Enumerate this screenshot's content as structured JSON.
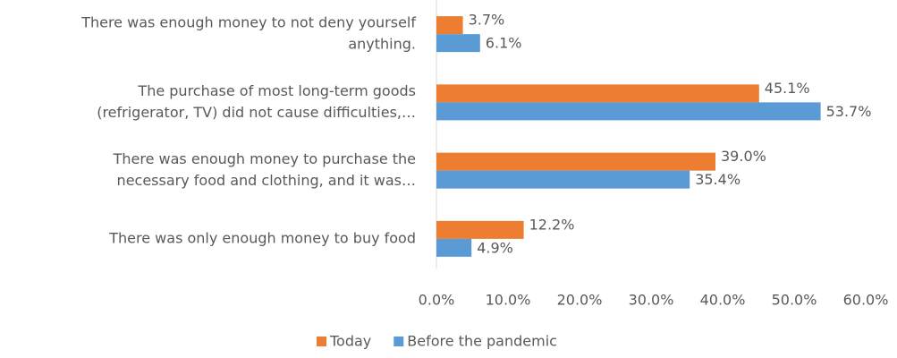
{
  "chart_data": {
    "type": "bar",
    "orientation": "horizontal",
    "categories": [
      [
        "There was enough money to not deny yourself",
        "anything."
      ],
      [
        "The purchase of most long-term goods",
        "(refrigerator, TV) did not cause difficulties,…"
      ],
      [
        "There was enough money to purchase the",
        "necessary food and clothing, and it was…"
      ],
      [
        "There was only enough money to buy food"
      ]
    ],
    "series": [
      {
        "name": "Today",
        "color": "#ed7d31",
        "values": [
          3.7,
          45.1,
          39.0,
          12.2
        ],
        "value_labels": [
          "3.7%",
          "45.1%",
          "39.0%",
          "12.2%"
        ]
      },
      {
        "name": "Before the pandemic",
        "color": "#5b9bd5",
        "values": [
          6.1,
          53.7,
          35.4,
          4.9
        ],
        "value_labels": [
          "6.1%",
          "53.7%",
          "35.4%",
          "4.9%"
        ]
      }
    ],
    "xlim": [
      0,
      60
    ],
    "xticks": [
      {
        "value": 0,
        "label": "0.0%"
      },
      {
        "value": 10,
        "label": "10.0%"
      },
      {
        "value": 20,
        "label": "20.0%"
      },
      {
        "value": 30,
        "label": "30.0%"
      },
      {
        "value": 40,
        "label": "40.0%"
      },
      {
        "value": 50,
        "label": "50.0%"
      },
      {
        "value": 60,
        "label": "60.0%"
      }
    ],
    "grid": false,
    "legend": "bottom"
  }
}
